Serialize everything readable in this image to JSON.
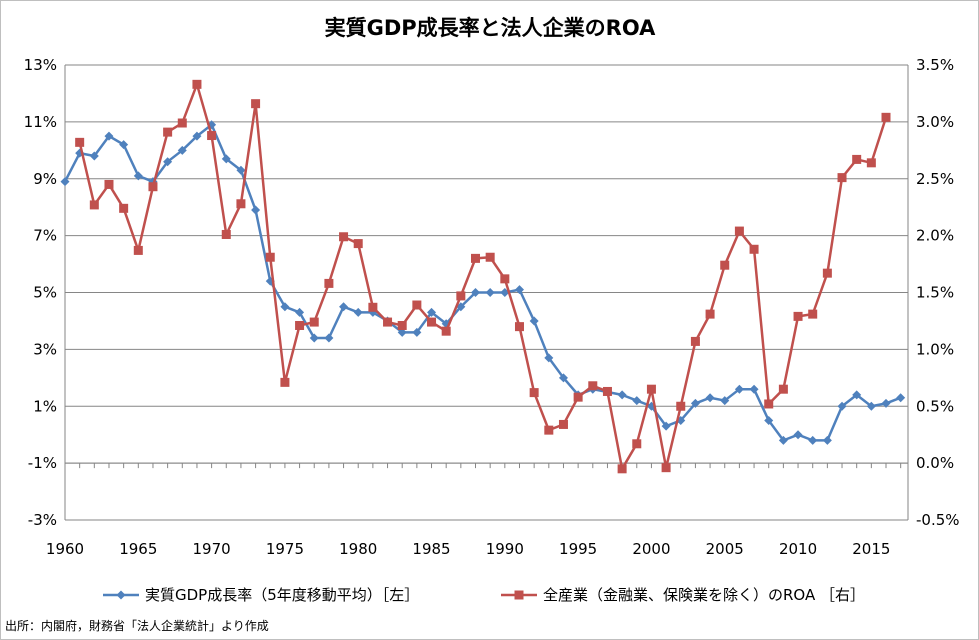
{
  "chart_data": {
    "type": "line",
    "title": "実質GDP成長率と法人企業のROA",
    "x_ticks": [
      "1960",
      "1965",
      "1970",
      "1975",
      "1980",
      "1985",
      "1990",
      "1995",
      "2000",
      "2005",
      "2010",
      "2015"
    ],
    "x_range": [
      1960,
      2017.5
    ],
    "y_left": {
      "range": [
        -3,
        13
      ],
      "ticks": [
        "-3%",
        "-1%",
        "1%",
        "3%",
        "5%",
        "7%",
        "9%",
        "11%",
        "13%"
      ]
    },
    "y_right": {
      "range": [
        -0.5,
        3.5
      ],
      "ticks": [
        "-0.5%",
        "0.0%",
        "0.5%",
        "1.0%",
        "1.5%",
        "2.0%",
        "2.5%",
        "3.0%",
        "3.5%"
      ]
    },
    "grid": "horizontal",
    "legend_position": "bottom",
    "series": [
      {
        "name": "実質GDP成長率（5年度移動平均）［左］",
        "axis": "left",
        "color": "#4f81bd",
        "marker": "diamond",
        "x": [
          1960,
          1961,
          1962,
          1963,
          1964,
          1965,
          1966,
          1967,
          1968,
          1969,
          1970,
          1971,
          1972,
          1973,
          1974,
          1975,
          1976,
          1977,
          1978,
          1979,
          1980,
          1981,
          1982,
          1983,
          1984,
          1985,
          1986,
          1987,
          1988,
          1989,
          1990,
          1991,
          1992,
          1993,
          1994,
          1995,
          1996,
          1997,
          1998,
          1999,
          2000,
          2001,
          2002,
          2003,
          2004,
          2005,
          2006,
          2007,
          2008,
          2009,
          2010,
          2011,
          2012,
          2013,
          2014,
          2015,
          2016,
          2017
        ],
        "y": [
          8.9,
          9.9,
          9.8,
          10.5,
          10.2,
          9.1,
          8.9,
          9.6,
          10.0,
          10.5,
          10.9,
          9.7,
          9.3,
          7.9,
          5.4,
          4.5,
          4.3,
          3.4,
          3.4,
          4.5,
          4.3,
          4.3,
          4.0,
          3.6,
          3.6,
          4.3,
          3.9,
          4.5,
          5.0,
          5.0,
          5.0,
          5.1,
          4.0,
          2.7,
          2.0,
          1.4,
          1.6,
          1.5,
          1.4,
          1.2,
          1.0,
          0.3,
          0.5,
          1.1,
          1.3,
          1.2,
          1.6,
          1.6,
          0.5,
          -0.2,
          0.0,
          -0.2,
          -0.2,
          1.0,
          1.4,
          1.0,
          1.1,
          1.3
        ]
      },
      {
        "name": "全産業（金融業、保険業を除く）のROA ［右］",
        "axis": "right",
        "color": "#c0504d",
        "marker": "square",
        "x": [
          1961,
          1962,
          1963,
          1964,
          1965,
          1966,
          1967,
          1968,
          1969,
          1970,
          1971,
          1972,
          1973,
          1974,
          1975,
          1976,
          1977,
          1978,
          1979,
          1980,
          1981,
          1982,
          1983,
          1984,
          1985,
          1986,
          1987,
          1988,
          1989,
          1990,
          1991,
          1992,
          1993,
          1994,
          1995,
          1996,
          1997,
          1998,
          1999,
          2000,
          2001,
          2002,
          2003,
          2004,
          2005,
          2006,
          2007,
          2008,
          2009,
          2010,
          2011,
          2012,
          2013,
          2014,
          2015,
          2016
        ],
        "y": [
          2.82,
          2.27,
          2.45,
          2.24,
          1.87,
          2.43,
          2.91,
          2.99,
          3.33,
          2.88,
          2.01,
          2.28,
          3.16,
          1.81,
          0.71,
          1.21,
          1.24,
          1.58,
          1.99,
          1.93,
          1.37,
          1.24,
          1.21,
          1.39,
          1.24,
          1.16,
          1.47,
          1.8,
          1.81,
          1.62,
          1.2,
          0.62,
          0.29,
          0.34,
          0.58,
          0.68,
          0.63,
          -0.05,
          0.17,
          0.65,
          -0.04,
          0.5,
          1.07,
          1.31,
          1.74,
          2.04,
          1.88,
          0.52,
          0.65,
          1.29,
          1.31,
          1.67,
          2.51,
          2.67,
          2.64,
          3.04
        ]
      }
    ],
    "source": "出所：内閣府，財務省「法人企業統計」より作成"
  }
}
